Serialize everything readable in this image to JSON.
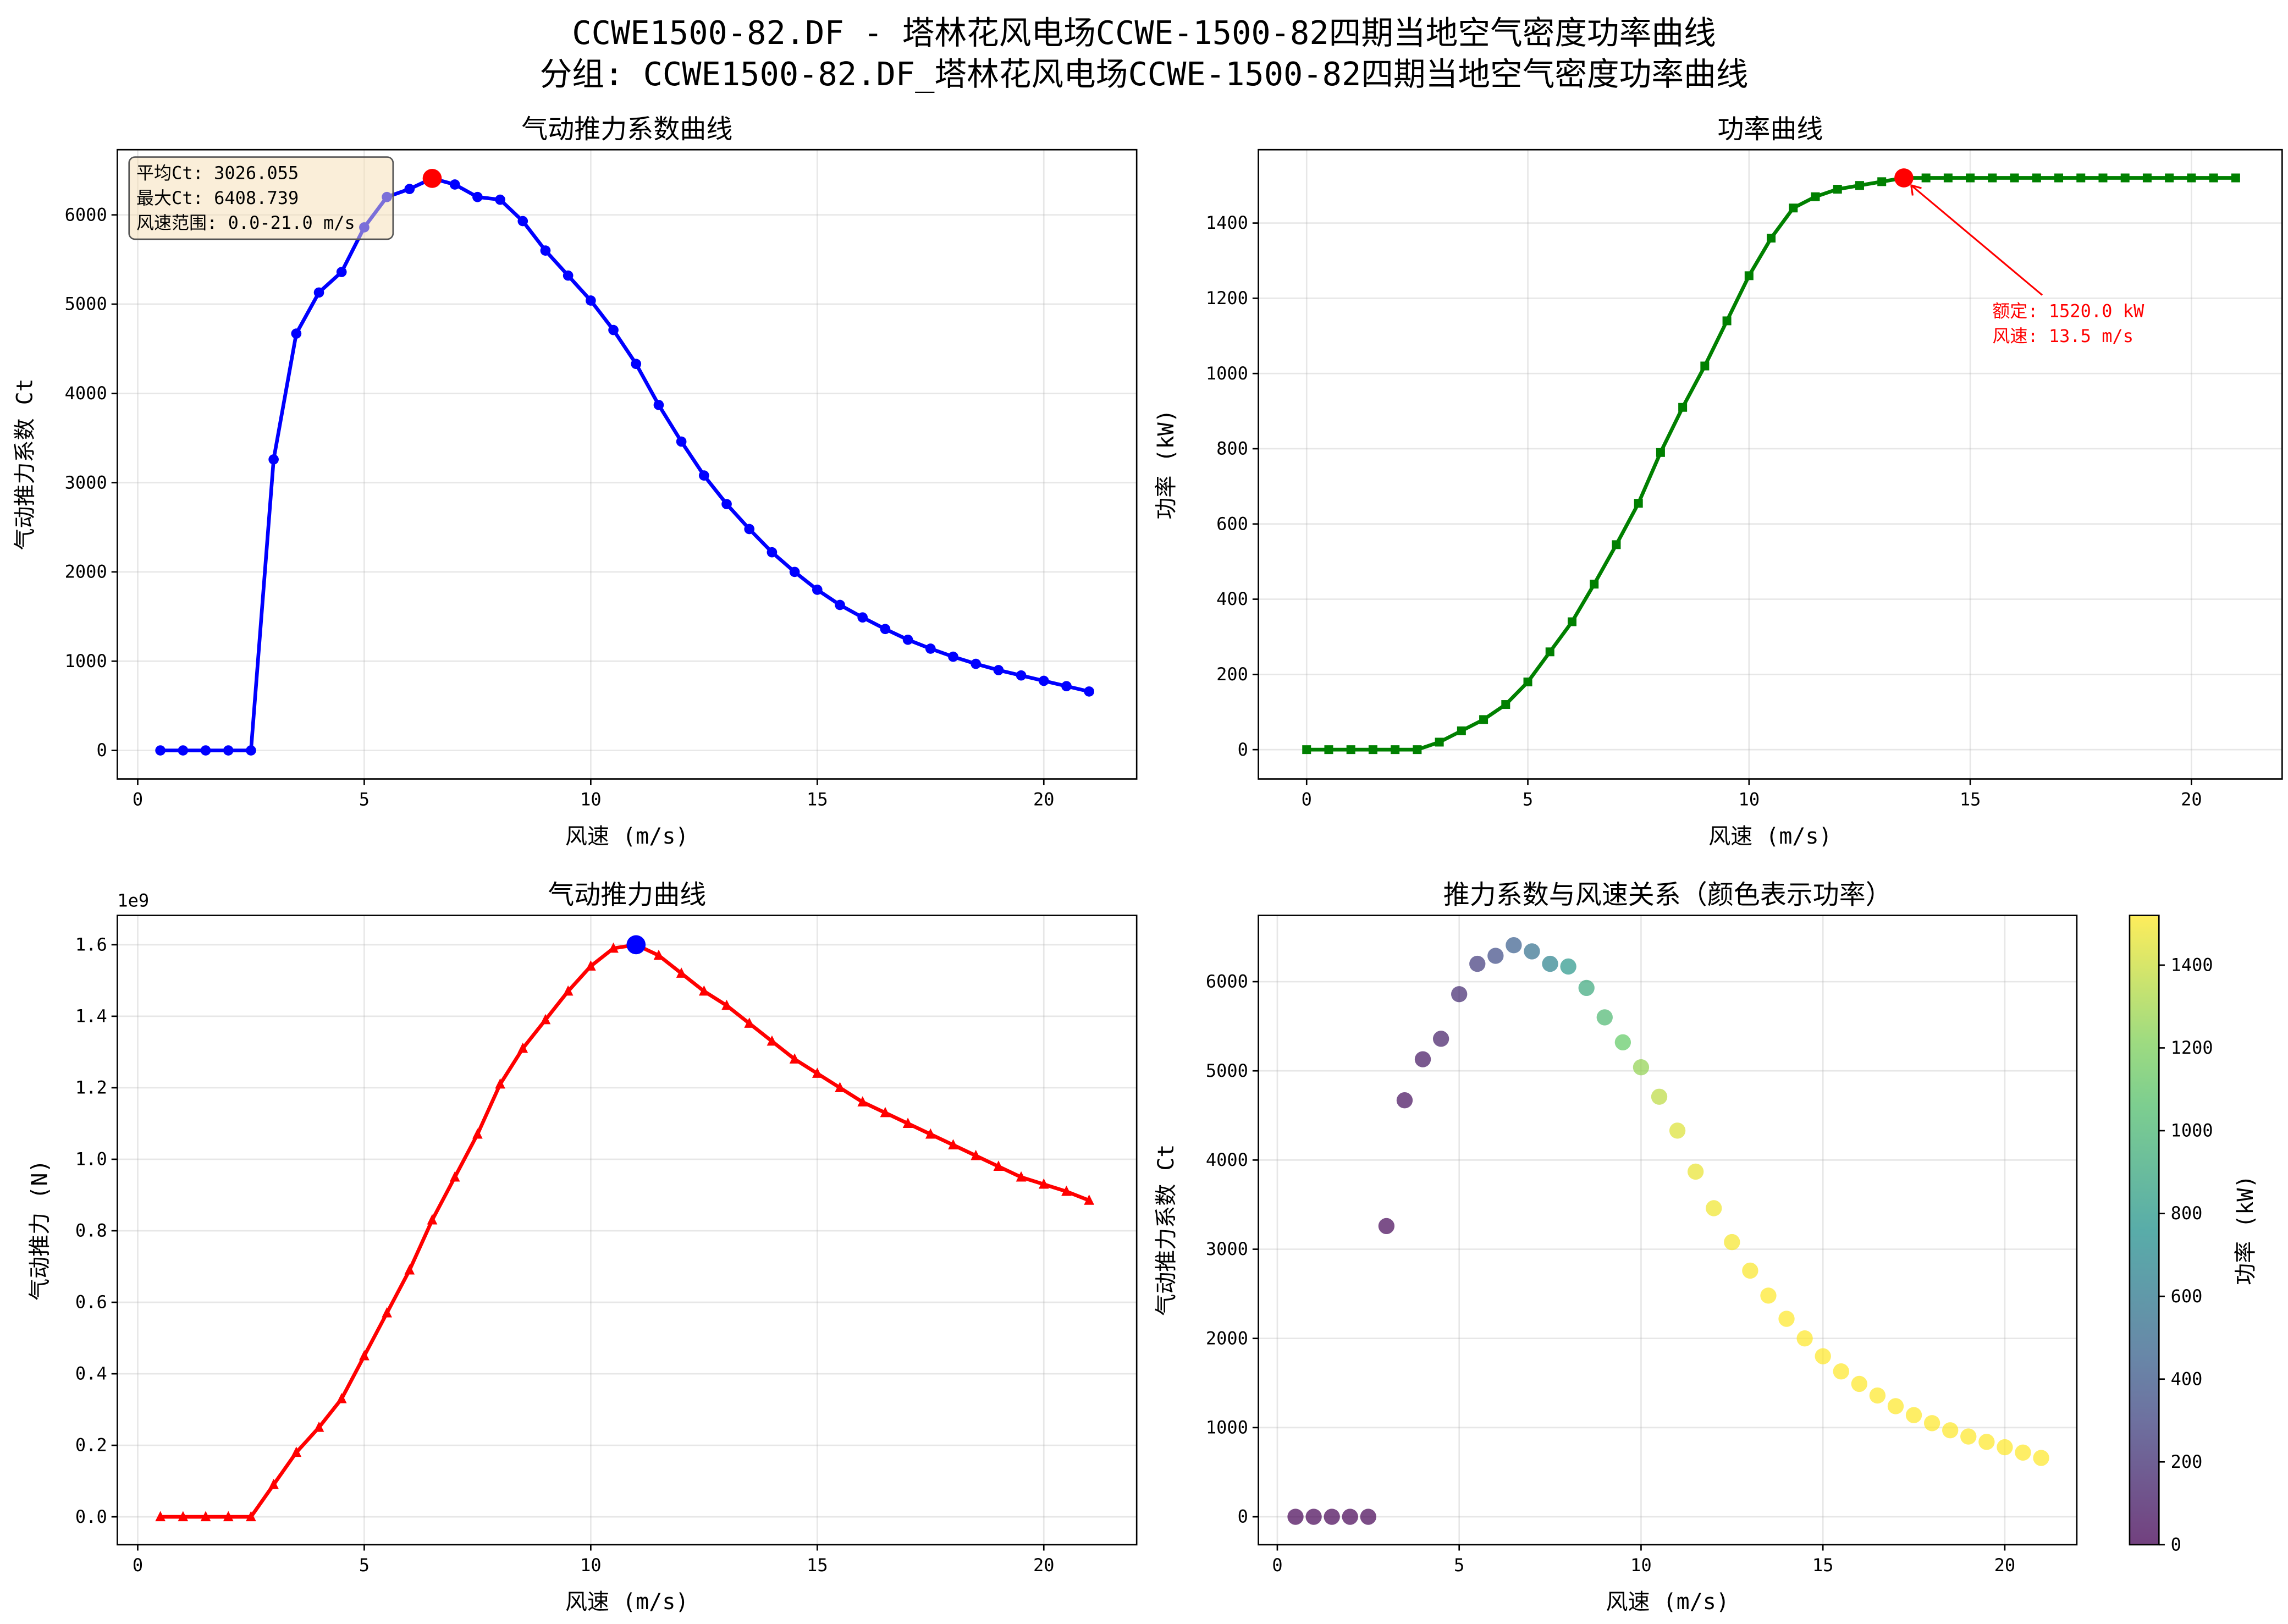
{
  "suptitle": [
    "CCWE1500-82.DF - 塔林花风电场CCWE-1500-82四期当地空气密度功率曲线",
    "分组: CCWE1500-82.DF_塔林花风电场CCWE-1500-82四期当地空气密度功率曲线"
  ],
  "chart_data": [
    {
      "type": "line",
      "title": "气动推力系数曲线",
      "xlabel": "风速 (m/s)",
      "ylabel": "气动推力系数 Ct",
      "xlim": [
        -0.45,
        22.05
      ],
      "ylim": [
        -320,
        6730
      ],
      "xticks": [
        0,
        5,
        10,
        15,
        20
      ],
      "yticks": [
        0,
        1000,
        2000,
        3000,
        4000,
        5000,
        6000
      ],
      "grid": true,
      "color": "#0000ff",
      "marker": "circle",
      "x": [
        0.5,
        1,
        1.5,
        2,
        2.5,
        3,
        3.5,
        4,
        4.5,
        5,
        5.5,
        6,
        6.5,
        7,
        7.5,
        8,
        8.5,
        9,
        9.5,
        10,
        10.5,
        11,
        11.5,
        12,
        12.5,
        13,
        13.5,
        14,
        14.5,
        15,
        15.5,
        16,
        16.5,
        17,
        17.5,
        18,
        18.5,
        19,
        19.5,
        20,
        20.5,
        21
      ],
      "y": [
        0,
        0,
        0,
        0,
        0,
        3260,
        4670,
        5130,
        5360,
        5860,
        6200,
        6290,
        6409,
        6340,
        6200,
        6170,
        5930,
        5600,
        5320,
        5040,
        4710,
        4330,
        3870,
        3460,
        3080,
        2760,
        2480,
        2220,
        2000,
        1800,
        1630,
        1490,
        1360,
        1240,
        1140,
        1050,
        970,
        900,
        840,
        780,
        720,
        660
      ],
      "highlight": {
        "x": 6.5,
        "y": 6408.739,
        "color": "#ff0000"
      },
      "stats_box": [
        "平均Ct: 3026.055",
        "最大Ct: 6408.739",
        "风速范围: 0.0-21.0 m/s"
      ]
    },
    {
      "type": "line",
      "title": "功率曲线",
      "xlabel": "风速 (m/s)",
      "ylabel": "功率 (kW)",
      "xlim": [
        -1.09,
        22.05
      ],
      "ylim": [
        -78,
        1595
      ],
      "xticks": [
        0,
        5,
        10,
        15,
        20
      ],
      "yticks": [
        0,
        200,
        400,
        600,
        800,
        1000,
        1200,
        1400
      ],
      "grid": true,
      "color": "#008000",
      "marker": "square",
      "x": [
        0,
        0.5,
        1,
        1.5,
        2,
        2.5,
        3,
        3.5,
        4,
        4.5,
        5,
        5.5,
        6,
        6.5,
        7,
        7.5,
        8,
        8.5,
        9,
        9.5,
        10,
        10.5,
        11,
        11.5,
        12,
        12.5,
        13,
        13.5,
        14,
        14.5,
        15,
        15.5,
        16,
        16.5,
        17,
        17.5,
        18,
        18.5,
        19,
        19.5,
        20,
        20.5,
        21
      ],
      "y": [
        0,
        0,
        0,
        0,
        0,
        0,
        20,
        50,
        80,
        120,
        180,
        260,
        340,
        440,
        545,
        655,
        790,
        910,
        1020,
        1140,
        1260,
        1360,
        1440,
        1470,
        1490,
        1500,
        1510,
        1520,
        1520,
        1520,
        1520,
        1520,
        1520,
        1520,
        1520,
        1520,
        1520,
        1520,
        1520,
        1520,
        1520,
        1520,
        1520
      ],
      "highlight": {
        "x": 13.5,
        "y": 1520,
        "color": "#ff0000"
      },
      "annotation": {
        "lines": [
          "额定: 1520.0 kW",
          "风速: 13.5 m/s"
        ],
        "color": "#ff0000",
        "text_x": 15.5,
        "text_y": 1150
      }
    },
    {
      "type": "line",
      "title": "气动推力曲线",
      "xlabel": "风速 (m/s)",
      "ylabel": "气动推力 (N)",
      "y_offset_label": "1e9",
      "xlim": [
        -0.45,
        22.05
      ],
      "ylim": [
        -0.078,
        1.682
      ],
      "xticks": [
        0,
        5,
        10,
        15,
        20
      ],
      "yticks": [
        0,
        0.2,
        0.4,
        0.6,
        0.8,
        1.0,
        1.2,
        1.4,
        1.6
      ],
      "grid": true,
      "color": "#ff0000",
      "marker": "triangle",
      "x": [
        0.5,
        1,
        1.5,
        2,
        2.5,
        3,
        3.5,
        4,
        4.5,
        5,
        5.5,
        6,
        6.5,
        7,
        7.5,
        8,
        8.5,
        9,
        9.5,
        10,
        10.5,
        11,
        11.5,
        12,
        12.5,
        13,
        13.5,
        14,
        14.5,
        15,
        15.5,
        16,
        16.5,
        17,
        17.5,
        18,
        18.5,
        19,
        19.5,
        20,
        20.5,
        21
      ],
      "y": [
        0,
        0,
        0,
        0,
        0,
        0.09,
        0.18,
        0.25,
        0.33,
        0.45,
        0.57,
        0.69,
        0.83,
        0.95,
        1.07,
        1.21,
        1.31,
        1.39,
        1.47,
        1.54,
        1.59,
        1.6,
        1.57,
        1.52,
        1.47,
        1.43,
        1.38,
        1.33,
        1.28,
        1.24,
        1.2,
        1.16,
        1.13,
        1.1,
        1.07,
        1.04,
        1.01,
        0.98,
        0.95,
        0.93,
        0.91,
        0.885
      ],
      "highlight": {
        "x": 11,
        "y": 1.6,
        "color": "#0000ff"
      }
    },
    {
      "type": "scatter",
      "title": "推力系数与风速关系（颜色表示功率）",
      "xlabel": "风速 (m/s)",
      "ylabel": "气动推力系数 Ct",
      "xlim": [
        -0.52,
        21.98
      ],
      "ylim": [
        -313,
        6743
      ],
      "xticks": [
        0,
        5,
        10,
        15,
        20
      ],
      "yticks": [
        0,
        1000,
        2000,
        3000,
        4000,
        5000,
        6000
      ],
      "grid": true,
      "colormap": "viridis",
      "colorbar": {
        "label": "功率 (kW)",
        "range": [
          0,
          1520
        ],
        "ticks": [
          0,
          200,
          400,
          600,
          800,
          1000,
          1200,
          1400
        ]
      },
      "x": [
        0.5,
        1,
        1.5,
        2,
        2.5,
        3,
        3.5,
        4,
        4.5,
        5,
        5.5,
        6,
        6.5,
        7,
        7.5,
        8,
        8.5,
        9,
        9.5,
        10,
        10.5,
        11,
        11.5,
        12,
        12.5,
        13,
        13.5,
        14,
        14.5,
        15,
        15.5,
        16,
        16.5,
        17,
        17.5,
        18,
        18.5,
        19,
        19.5,
        20,
        20.5,
        21
      ],
      "y": [
        0,
        0,
        0,
        0,
        0,
        3260,
        4670,
        5130,
        5360,
        5860,
        6200,
        6290,
        6409,
        6340,
        6200,
        6170,
        5930,
        5600,
        5320,
        5040,
        4710,
        4330,
        3870,
        3460,
        3080,
        2760,
        2480,
        2220,
        2000,
        1800,
        1630,
        1490,
        1360,
        1240,
        1140,
        1050,
        970,
        900,
        840,
        780,
        720,
        660
      ],
      "c": [
        0,
        0,
        0,
        0,
        0,
        20,
        50,
        80,
        120,
        180,
        260,
        340,
        440,
        545,
        655,
        790,
        910,
        1020,
        1140,
        1260,
        1360,
        1440,
        1470,
        1490,
        1500,
        1510,
        1520,
        1520,
        1520,
        1520,
        1520,
        1520,
        1520,
        1520,
        1520,
        1520,
        1520,
        1520,
        1520,
        1520,
        1520,
        1520
      ]
    }
  ]
}
